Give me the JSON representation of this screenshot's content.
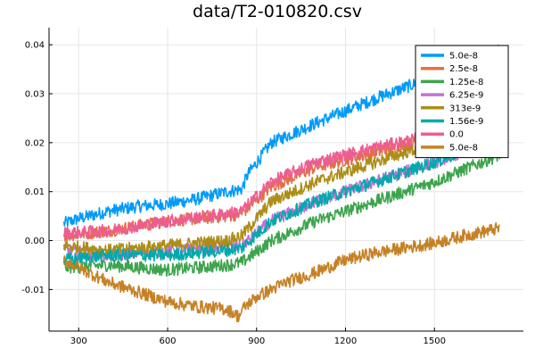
{
  "chart_data": {
    "type": "line",
    "title": "data/T2-010820.csv",
    "xlabel": "",
    "ylabel": "",
    "xlim": [
      200,
      1800
    ],
    "ylim": [
      -0.0185,
      0.0435
    ],
    "xticks": [
      300,
      600,
      900,
      1200,
      1500
    ],
    "xtick_labels": [
      "300",
      "600",
      "900",
      "1200",
      "1500"
    ],
    "yticks": [
      -0.01,
      0.0,
      0.01,
      0.02,
      0.03,
      0.04
    ],
    "ytick_labels": [
      "-0.01",
      "0.00",
      "0.01",
      "0.02",
      "0.03",
      "0.04"
    ],
    "grid": true,
    "legend_position": "top-right",
    "series": [
      {
        "name": "5.0e-8",
        "color": "#009af9",
        "x": [
          250,
          300,
          400,
          500,
          600,
          700,
          800,
          850,
          870,
          950,
          1100,
          1300,
          1500,
          1600,
          1720
        ],
        "y": [
          0.0035,
          0.0045,
          0.006,
          0.007,
          0.0075,
          0.0085,
          0.01,
          0.0105,
          0.0135,
          0.02,
          0.024,
          0.029,
          0.0335,
          0.036,
          0.039
        ]
      },
      {
        "name": "2.5e-8",
        "color": "#e26f46",
        "x": [
          250,
          400,
          600,
          800,
          850,
          950,
          1100,
          1300,
          1500,
          1720
        ],
        "y": [
          0.001,
          0.002,
          0.004,
          0.005,
          0.0055,
          0.011,
          0.015,
          0.018,
          0.021,
          0.025
        ]
      },
      {
        "name": "1.25e-8",
        "color": "#3da44d",
        "x": [
          250,
          400,
          600,
          800,
          850,
          950,
          1100,
          1300,
          1500,
          1720
        ],
        "y": [
          -0.0055,
          -0.005,
          -0.006,
          -0.005,
          -0.0045,
          0.0,
          0.004,
          0.008,
          0.012,
          0.0175
        ]
      },
      {
        "name": "6.25e-9",
        "color": "#c271d2",
        "x": [
          250,
          400,
          600,
          800,
          850,
          950,
          1100,
          1300,
          1500,
          1720
        ],
        "y": [
          -0.002,
          -0.003,
          -0.002,
          -0.0015,
          -0.001,
          0.004,
          0.008,
          0.012,
          0.016,
          0.021
        ]
      },
      {
        "name": "313e-9",
        "color": "#ac8d18",
        "x": [
          250,
          400,
          600,
          800,
          850,
          950,
          1100,
          1300,
          1500,
          1720
        ],
        "y": [
          -0.001,
          -0.002,
          -0.001,
          0.0,
          0.001,
          0.008,
          0.012,
          0.016,
          0.02,
          0.025
        ]
      },
      {
        "name": "1.56e-9",
        "color": "#00a9ad",
        "x": [
          250,
          400,
          600,
          800,
          850,
          950,
          1100,
          1300,
          1500,
          1720
        ],
        "y": [
          -0.004,
          -0.003,
          -0.003,
          -0.002,
          -0.0015,
          0.004,
          0.008,
          0.012,
          0.016,
          0.021
        ]
      },
      {
        "name": "0.0",
        "color": "#ed5d92",
        "x": [
          250,
          400,
          600,
          800,
          850,
          950,
          1100,
          1300,
          1500,
          1720
        ],
        "y": [
          0.0015,
          0.002,
          0.004,
          0.0055,
          0.006,
          0.012,
          0.016,
          0.019,
          0.0215,
          0.025
        ]
      },
      {
        "name": "5.0e-8",
        "color": "#c68125",
        "x": [
          250,
          300,
          400,
          500,
          600,
          700,
          800,
          840,
          860,
          900,
          1000,
          1100,
          1200,
          1300,
          1400,
          1500,
          1600,
          1720
        ],
        "y": [
          -0.004,
          -0.0055,
          -0.0085,
          -0.0105,
          -0.0125,
          -0.0135,
          -0.014,
          -0.0155,
          -0.0135,
          -0.0115,
          -0.0085,
          -0.0065,
          -0.004,
          -0.0025,
          -0.0015,
          -0.0005,
          0.001,
          0.0025
        ]
      }
    ]
  }
}
